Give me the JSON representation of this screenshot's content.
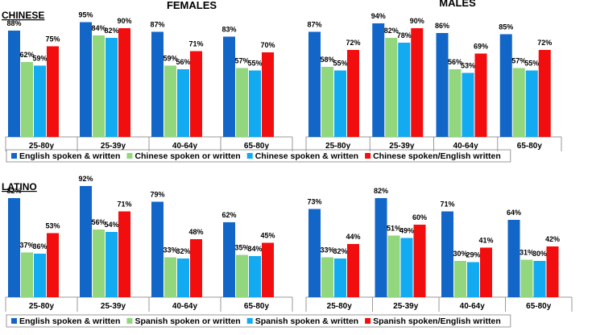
{
  "chart_data": [
    {
      "type": "bar",
      "section": "CHINESE",
      "subtitle": "FEMALES",
      "categories": [
        "25-80y",
        "25-39y",
        "40-64y",
        "65-80y"
      ],
      "series": [
        {
          "name": "English spoken & written",
          "color": "#1166c8",
          "values": [
            88,
            95,
            87,
            83
          ]
        },
        {
          "name": "Chinese spoken or written",
          "color": "#92d67e",
          "values": [
            62,
            84,
            59,
            57
          ]
        },
        {
          "name": "Chinese spoken & written",
          "color": "#12aaf0",
          "values": [
            59,
            82,
            56,
            55
          ]
        },
        {
          "name": "Chinese spoken/English written",
          "color": "#f20e0e",
          "values": [
            75,
            90,
            71,
            70
          ]
        }
      ],
      "ylim": [
        0,
        100
      ]
    },
    {
      "type": "bar",
      "section": "CHINESE",
      "subtitle": "MALES",
      "categories": [
        "25-80y",
        "25-39y",
        "40-64y",
        "65-80y"
      ],
      "series": [
        {
          "name": "English spoken & written",
          "color": "#1166c8",
          "values": [
            87,
            94,
            86,
            85
          ]
        },
        {
          "name": "Chinese spoken or written",
          "color": "#92d67e",
          "values": [
            58,
            82,
            56,
            57
          ]
        },
        {
          "name": "Chinese spoken & written",
          "color": "#12aaf0",
          "values": [
            55,
            78,
            53,
            55
          ]
        },
        {
          "name": "Chinese spoken/English written",
          "color": "#f20e0e",
          "values": [
            72,
            90,
            69,
            72
          ]
        }
      ],
      "ylim": [
        0,
        100
      ]
    },
    {
      "type": "bar",
      "section": "LATINO",
      "subtitle": "FEMALES",
      "categories": [
        "25-80y",
        "25-39y",
        "40-64y",
        "65-80y"
      ],
      "series": [
        {
          "name": "English spoken & written",
          "color": "#1166c8",
          "values": [
            82,
            92,
            79,
            62
          ]
        },
        {
          "name": "Spanish spoken or written",
          "color": "#92d67e",
          "values": [
            37,
            56,
            33,
            35
          ]
        },
        {
          "name": "Spanish spoken & written",
          "color": "#12aaf0",
          "values": [
            36,
            54,
            32,
            34
          ]
        },
        {
          "name": "Spanish spoken/English written",
          "color": "#f20e0e",
          "values": [
            53,
            71,
            48,
            45
          ]
        }
      ],
      "ylim": [
        0,
        100
      ]
    },
    {
      "type": "bar",
      "section": "LATINO",
      "subtitle": "MALES",
      "categories": [
        "25-80y",
        "25-39y",
        "40-64y",
        "65-80y"
      ],
      "series": [
        {
          "name": "English spoken & written",
          "color": "#1166c8",
          "values": [
            73,
            82,
            71,
            64
          ]
        },
        {
          "name": "Spanish spoken or written",
          "color": "#92d67e",
          "values": [
            33,
            51,
            30,
            31
          ]
        },
        {
          "name": "Spanish spoken & written",
          "color": "#12aaf0",
          "values": [
            32,
            49,
            29,
            30
          ]
        },
        {
          "name": "Spanish spoken/English written",
          "color": "#f20e0e",
          "values": [
            44,
            60,
            41,
            42
          ]
        }
      ],
      "ylim": [
        0,
        100
      ]
    }
  ],
  "headers": {
    "chinese": "CHINESE",
    "latino": "LATINO",
    "females": "FEMALES",
    "males": "MALES"
  }
}
